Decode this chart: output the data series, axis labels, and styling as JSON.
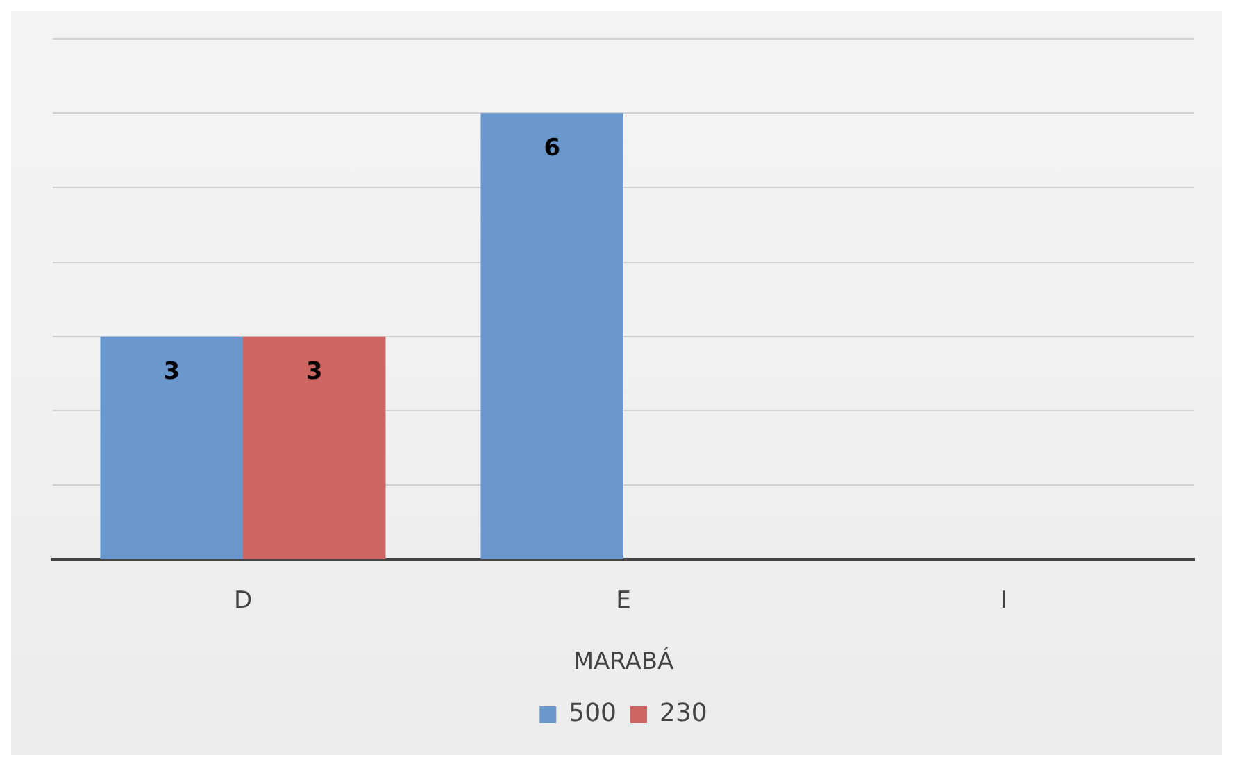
{
  "chart_data": {
    "type": "bar",
    "categories": [
      "D",
      "E",
      "I"
    ],
    "xlabel": "MARABÁ",
    "series": [
      {
        "name": "500",
        "color": "#6a98cc",
        "values": [
          3,
          6,
          null
        ]
      },
      {
        "name": "230",
        "color": "#cd6662",
        "values": [
          3,
          null,
          null
        ]
      }
    ],
    "ylim": [
      0,
      7
    ],
    "yticks": [
      {
        "value": 0,
        "label": null
      },
      {
        "value": 1,
        "label": null
      },
      {
        "value": 2,
        "label": null
      },
      {
        "value": 3,
        "label": null
      },
      {
        "value": 4,
        "label": null
      },
      {
        "value": 5,
        "label": null
      },
      {
        "value": 6,
        "label": null
      },
      {
        "value": 7,
        "label": null
      }
    ],
    "tick_labels": "x",
    "grid": "y",
    "legend": "bottom",
    "data_labels": true
  }
}
